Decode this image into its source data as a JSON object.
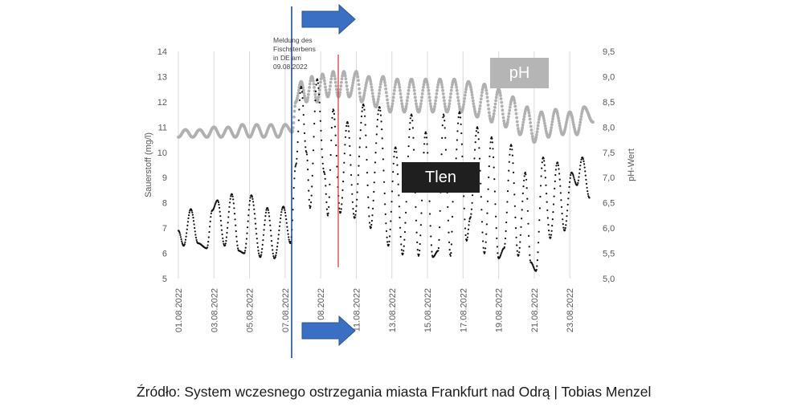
{
  "chart_data": {
    "type": "scatter",
    "x_tick_labels": [
      "01.08.2022",
      "03.08.2022",
      "05.08.2022",
      "07.08.2022",
      "08.2022",
      "11.08.2022",
      "13.08.2022",
      "15.08.2022",
      "17.08.2022",
      "19.08.2022",
      "21.08.2022",
      "23.08.2022"
    ],
    "ylabel_left": "Sauerstoff (mg/l)",
    "ylabel_right": "pH-Wert",
    "ylim_left": [
      5,
      14
    ],
    "ylim_right": [
      5.0,
      9.5
    ],
    "yticks_left": [
      "5",
      "6",
      "7",
      "8",
      "9",
      "10",
      "11",
      "12",
      "13",
      "14"
    ],
    "yticks_right": [
      "5,0",
      "5,5",
      "6,0",
      "6,5",
      "7,0",
      "7,5",
      "8,0",
      "8,5",
      "9,0",
      "9,5"
    ],
    "xlim_days": [
      1,
      24.3
    ],
    "grid": "vertical",
    "series": [
      {
        "name": "pH",
        "axis": "right",
        "color": "#b0b0b0",
        "points": [
          [
            1.0,
            7.8
          ],
          [
            1.4,
            7.95
          ],
          [
            1.8,
            7.8
          ],
          [
            2.2,
            7.95
          ],
          [
            2.6,
            7.8
          ],
          [
            3.0,
            8.0
          ],
          [
            3.4,
            7.8
          ],
          [
            3.8,
            8.0
          ],
          [
            4.2,
            7.8
          ],
          [
            4.6,
            8.05
          ],
          [
            5.0,
            7.8
          ],
          [
            5.4,
            8.05
          ],
          [
            5.8,
            7.8
          ],
          [
            6.2,
            8.05
          ],
          [
            6.6,
            7.8
          ],
          [
            7.0,
            8.05
          ],
          [
            7.4,
            7.9
          ],
          [
            7.6,
            8.5
          ],
          [
            7.9,
            8.9
          ],
          [
            8.2,
            8.5
          ],
          [
            8.5,
            9.0
          ],
          [
            8.8,
            8.5
          ],
          [
            9.1,
            9.05
          ],
          [
            9.4,
            8.6
          ],
          [
            9.7,
            9.1
          ],
          [
            10.0,
            8.6
          ],
          [
            10.3,
            9.1
          ],
          [
            10.6,
            8.6
          ],
          [
            11.0,
            9.1
          ],
          [
            11.3,
            8.5
          ],
          [
            11.7,
            9.0
          ],
          [
            12.1,
            8.4
          ],
          [
            12.5,
            9.0
          ],
          [
            12.9,
            8.3
          ],
          [
            13.3,
            8.95
          ],
          [
            13.7,
            8.3
          ],
          [
            14.1,
            8.95
          ],
          [
            14.5,
            8.3
          ],
          [
            14.9,
            8.95
          ],
          [
            15.3,
            8.3
          ],
          [
            15.7,
            8.95
          ],
          [
            16.1,
            8.3
          ],
          [
            16.5,
            8.95
          ],
          [
            16.9,
            8.3
          ],
          [
            17.3,
            8.9
          ],
          [
            17.8,
            8.2
          ],
          [
            18.2,
            8.85
          ],
          [
            18.6,
            8.1
          ],
          [
            19.0,
            8.75
          ],
          [
            19.4,
            8.0
          ],
          [
            19.8,
            8.6
          ],
          [
            20.2,
            7.85
          ],
          [
            20.6,
            8.4
          ],
          [
            21.0,
            7.7
          ],
          [
            21.4,
            8.3
          ],
          [
            21.8,
            7.8
          ],
          [
            22.2,
            8.35
          ],
          [
            22.6,
            7.85
          ],
          [
            23.0,
            8.3
          ],
          [
            23.4,
            7.85
          ],
          [
            23.8,
            8.4
          ],
          [
            24.3,
            8.1
          ]
        ]
      },
      {
        "name": "Tlen",
        "axis": "left",
        "color": "#111111",
        "points": [
          [
            1.0,
            6.9
          ],
          [
            1.3,
            6.3
          ],
          [
            1.7,
            7.75
          ],
          [
            2.1,
            6.4
          ],
          [
            2.6,
            6.2
          ],
          [
            2.9,
            7.7
          ],
          [
            3.2,
            8.1
          ],
          [
            3.6,
            6.3
          ],
          [
            4.0,
            8.35
          ],
          [
            4.4,
            6.1
          ],
          [
            4.7,
            6.0
          ],
          [
            5.1,
            8.3
          ],
          [
            5.6,
            5.85
          ],
          [
            6.0,
            7.8
          ],
          [
            6.4,
            5.8
          ],
          [
            6.9,
            7.85
          ],
          [
            7.3,
            6.4
          ],
          [
            7.6,
            9.5
          ],
          [
            7.9,
            12.6
          ],
          [
            8.2,
            10.0
          ],
          [
            8.4,
            7.8
          ],
          [
            8.8,
            12.9
          ],
          [
            9.2,
            9.2
          ],
          [
            9.4,
            7.5
          ],
          [
            9.7,
            11.7
          ],
          [
            10.1,
            7.6
          ],
          [
            10.5,
            11.2
          ],
          [
            10.9,
            7.4
          ],
          [
            11.4,
            11.9
          ],
          [
            11.8,
            7.0
          ],
          [
            12.3,
            11.8
          ],
          [
            12.8,
            6.3
          ],
          [
            13.2,
            10.2
          ],
          [
            13.6,
            5.95
          ],
          [
            14.1,
            11.5
          ],
          [
            14.5,
            5.9
          ],
          [
            14.9,
            10.8
          ],
          [
            15.3,
            5.85
          ],
          [
            15.6,
            6.1
          ],
          [
            15.9,
            11.5
          ],
          [
            16.3,
            5.9
          ],
          [
            16.5,
            9.0
          ],
          [
            16.8,
            11.6
          ],
          [
            17.2,
            6.5
          ],
          [
            17.4,
            7.4
          ],
          [
            17.8,
            11.0
          ],
          [
            18.2,
            6.0
          ],
          [
            18.6,
            10.6
          ],
          [
            19.0,
            5.8
          ],
          [
            19.3,
            6.2
          ],
          [
            19.7,
            10.3
          ],
          [
            20.1,
            5.9
          ],
          [
            20.5,
            9.2
          ],
          [
            20.8,
            5.65
          ],
          [
            21.1,
            5.3
          ],
          [
            21.5,
            9.8
          ],
          [
            21.9,
            6.6
          ],
          [
            22.3,
            9.6
          ],
          [
            22.7,
            6.9
          ],
          [
            23.1,
            9.2
          ],
          [
            23.4,
            8.7
          ],
          [
            23.7,
            9.8
          ],
          [
            24.1,
            8.2
          ]
        ]
      }
    ],
    "annotations": {
      "event_text": [
        "Meldung des",
        "Fischsterbens",
        "in DE am",
        "09.08.2022"
      ]
    },
    "colors": {
      "event_line": "#1f4e9a",
      "marker_line": "#e03030",
      "arrow": "#3a6fc4",
      "arrow_stroke": "#2b559a",
      "grid": "#d9d9d9",
      "ph_box": "#b5b5b5",
      "tlen_box": "#1f1f1f"
    }
  },
  "labels": {
    "ph_box": "pH",
    "tlen_box": "Tlen"
  },
  "caption": "Źródło: System wczesnego ostrzegania miasta Frankfurt nad Odrą  | Tobias Menzel",
  "icons": [
    "arrow-right-icon",
    "arrow-right-icon"
  ]
}
